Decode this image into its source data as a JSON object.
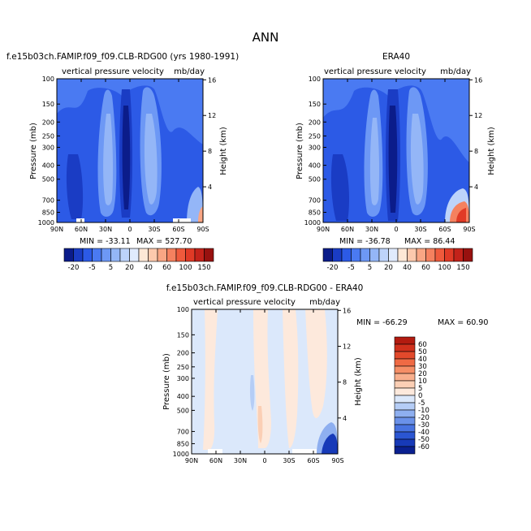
{
  "page": {
    "title": "ANN"
  },
  "chart_data": [
    {
      "type": "heatmap",
      "title": "f.e15b03ch.FAMIP.f09_f09.CLB-RDG00 (yrs 1980-1991)",
      "subtitle": "vertical pressure velocity",
      "units": "mb/day",
      "ylabel": "Pressure (mb)",
      "ylabel_right": "Height (km)",
      "x_ticks": [
        "90N",
        "60N",
        "30N",
        "0",
        "30S",
        "60S",
        "90S"
      ],
      "y_ticks": [
        100,
        150,
        200,
        250,
        300,
        400,
        500,
        700,
        850,
        1000
      ],
      "y_ticks_right": [
        16,
        12,
        8,
        4
      ],
      "ylim": [
        1000,
        100
      ],
      "stats": {
        "min_label": "MIN = -33.11",
        "max_label": "MAX = 527.70"
      },
      "colorbar": {
        "labels": [
          "-20",
          "-5",
          "5",
          "20",
          "40",
          "60",
          "100",
          "150"
        ],
        "colors": [
          "#0b1c8a",
          "#1a3cc4",
          "#2c5ae6",
          "#4a7af2",
          "#6d98f5",
          "#94b6f7",
          "#bdd3fa",
          "#e0ebfd",
          "#fde8d6",
          "#fcc9ad",
          "#f9a684",
          "#f5815f",
          "#ef5a3c",
          "#e03a26",
          "#c3221a",
          "#98110f"
        ]
      }
    },
    {
      "type": "heatmap",
      "title": "ERA40",
      "subtitle": "vertical pressure velocity",
      "units": "mb/day",
      "ylabel": "Pressure (mb)",
      "ylabel_right": "Height (km)",
      "x_ticks": [
        "90N",
        "60N",
        "30N",
        "0",
        "30S",
        "60S",
        "90S"
      ],
      "y_ticks": [
        100,
        150,
        200,
        250,
        300,
        400,
        500,
        700,
        850,
        1000
      ],
      "y_ticks_right": [
        16,
        12,
        8,
        4
      ],
      "ylim": [
        1000,
        100
      ],
      "stats": {
        "min_label": "MIN = -36.78",
        "max_label": "MAX =  86.44"
      },
      "colorbar": {
        "labels": [
          "-20",
          "-5",
          "5",
          "20",
          "40",
          "60",
          "100",
          "150"
        ],
        "colors": [
          "#0b1c8a",
          "#1a3cc4",
          "#2c5ae6",
          "#4a7af2",
          "#6d98f5",
          "#94b6f7",
          "#bdd3fa",
          "#e0ebfd",
          "#fde8d6",
          "#fcc9ad",
          "#f9a684",
          "#f5815f",
          "#ef5a3c",
          "#e03a26",
          "#c3221a",
          "#98110f"
        ]
      }
    },
    {
      "type": "heatmap",
      "title": "f.e15b03ch.FAMIP.f09_f09.CLB-RDG00 - ERA40",
      "subtitle": "vertical pressure velocity",
      "units": "mb/day",
      "ylabel": "Pressure (mb)",
      "ylabel_right": "Height (km)",
      "x_ticks": [
        "90N",
        "60N",
        "30N",
        "0",
        "30S",
        "60S",
        "90S"
      ],
      "y_ticks": [
        100,
        150,
        200,
        250,
        300,
        400,
        500,
        700,
        850,
        1000
      ],
      "y_ticks_right": [
        16,
        12,
        8,
        4
      ],
      "ylim": [
        1000,
        100
      ],
      "stats": {
        "min_label": "MIN = -66.29",
        "max_label": "MAX =  60.90"
      },
      "colorbar": {
        "labels": [
          "60",
          "50",
          "40",
          "30",
          "20",
          "10",
          "5",
          "0",
          "-5",
          "-10",
          "-20",
          "-30",
          "-40",
          "-50",
          "-60"
        ],
        "colors": [
          "#b31b10",
          "#d0301c",
          "#e2492b",
          "#ef6a44",
          "#f58e66",
          "#f8af8d",
          "#fbcfb5",
          "#fde9dc",
          "#dbe8fb",
          "#b5cdf6",
          "#8eaff0",
          "#6a91e9",
          "#4873e0",
          "#2b56d2",
          "#173ab8",
          "#0a2090"
        ]
      }
    }
  ]
}
